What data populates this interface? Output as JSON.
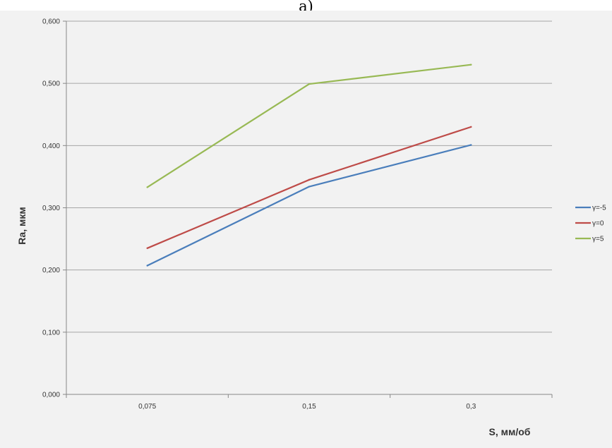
{
  "caption": "а)",
  "chart_data": {
    "type": "line",
    "categories": [
      "0,075",
      "0,15",
      "0,3"
    ],
    "xlabel": "S, мм/об",
    "ylabel": "Ra, мкм",
    "ylim": [
      0,
      0.6
    ],
    "yticks": [
      "0,000",
      "0,100",
      "0,200",
      "0,300",
      "0,400",
      "0,500",
      "0,600"
    ],
    "grid": true,
    "legend_position": "right",
    "series": [
      {
        "name": "γ=-5",
        "color": "#4a7ebb",
        "values": [
          0.207,
          0.334,
          0.401
        ]
      },
      {
        "name": "γ=0",
        "color": "#be4b48",
        "values": [
          0.235,
          0.345,
          0.43
        ]
      },
      {
        "name": "γ=5",
        "color": "#98b954",
        "values": [
          0.333,
          0.499,
          0.53
        ]
      }
    ]
  }
}
